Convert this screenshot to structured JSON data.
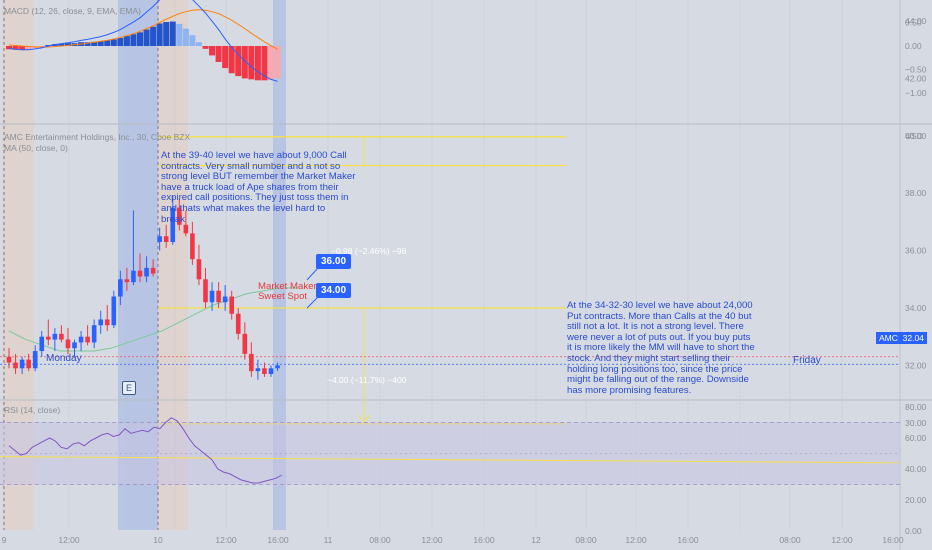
{
  "macd_panel": {
    "legend": "MACD (12, 26, close, 9, EMA, EMA)",
    "axis_ticks": [
      {
        "value": 0.5,
        "label": "0.50"
      },
      {
        "value": 0.0,
        "label": "0.00"
      },
      {
        "value": -0.5,
        "label": "−0.50"
      },
      {
        "value": -1.0,
        "label": "−1.00"
      }
    ]
  },
  "price_panel": {
    "legend_line1": "AMC Entertainment Holdings, Inc., 30, Cboe BZX",
    "legend_line2": "MA (50, close, 0)",
    "currency": "USD",
    "axis_ticks": [
      {
        "value": 44,
        "label": "44.00"
      },
      {
        "value": 42,
        "label": "42.00"
      },
      {
        "value": 40,
        "label": "40.00"
      },
      {
        "value": 38,
        "label": "38.00"
      },
      {
        "value": 36,
        "label": "36.00"
      },
      {
        "value": 34,
        "label": "34.00"
      },
      {
        "value": 32,
        "label": "32.00"
      },
      {
        "value": 30,
        "label": "30.00"
      }
    ],
    "current_price": {
      "symbol": "AMC",
      "value": "32.04"
    }
  },
  "rsi_panel": {
    "legend": "RSI (14, close)",
    "axis_ticks": [
      {
        "value": 80,
        "label": "80.00"
      },
      {
        "value": 60,
        "label": "60.00"
      },
      {
        "value": 40,
        "label": "40.00"
      },
      {
        "value": 20,
        "label": "20.00"
      },
      {
        "value": 0,
        "label": "0.00"
      }
    ]
  },
  "time_axis": [
    "9",
    "12:00",
    "10",
    "12:00",
    "16:00",
    "11",
    "08:00",
    "12:00",
    "16:00",
    "12",
    "08:00",
    "12:00",
    "16:00",
    "08:00",
    "12:00",
    "16:00"
  ],
  "day_labels": {
    "monday": "Monday",
    "friday": "Friday"
  },
  "annotations": {
    "calls_note": "At the 39-40 level we have about 9,000 Call\ncontracts. Very small number and a not so\nstrong level BUT remember the Market Maker\nhave a truck load of Ape shares from their\nexpired call positions. They just toss them in\nand thats what makes the level hard to\nbreak",
    "puts_note": "At the 34-32-30 level we have about 24,000\nPut  contracts. More than Calls at the 40 but\nstill not a lot. It is not a strong level. There\nwere never a lot of puts out. If you buy puts\nit is more likely the MM will have to short the\nstock. And they might start selling their\nholding long positions too, since the price\nmight be falling out of the range. Downside\nhas more promising features.",
    "sweet_spot": "Market Maker\nSweet Spot",
    "measure_up": "−0.98 (−2.46%) −98",
    "measure_down": "−4.00 (−11.7%) −400",
    "tag_36": "36.00",
    "tag_34": "34.00",
    "earnings_icon": "E"
  },
  "colors": {
    "background": "#d6dae3",
    "up_candle": "#2962ff",
    "down_candle": "#f23645",
    "ma_line": "#7ec89a",
    "level_line": "#f5e04a",
    "rsi_line": "#7e57c2",
    "annotation_text": "#2a4bd1"
  },
  "chart_data": {
    "type": "candlestick",
    "symbol": "AMC",
    "interval": "30",
    "ylim": [
      29,
      46
    ],
    "candles": [
      {
        "o": 32.3,
        "h": 32.6,
        "l": 31.9,
        "c": 32.1
      },
      {
        "o": 32.1,
        "h": 32.4,
        "l": 31.7,
        "c": 31.9
      },
      {
        "o": 31.9,
        "h": 32.3,
        "l": 31.7,
        "c": 32.2
      },
      {
        "o": 32.2,
        "h": 32.4,
        "l": 31.8,
        "c": 31.9
      },
      {
        "o": 31.9,
        "h": 32.7,
        "l": 31.8,
        "c": 32.5
      },
      {
        "o": 32.5,
        "h": 33.2,
        "l": 32.3,
        "c": 33.0
      },
      {
        "o": 33.0,
        "h": 33.6,
        "l": 32.7,
        "c": 32.9
      },
      {
        "o": 32.9,
        "h": 33.3,
        "l": 32.5,
        "c": 33.1
      },
      {
        "o": 33.1,
        "h": 33.4,
        "l": 32.8,
        "c": 32.9
      },
      {
        "o": 32.9,
        "h": 33.3,
        "l": 32.4,
        "c": 32.6
      },
      {
        "o": 32.6,
        "h": 32.9,
        "l": 32.3,
        "c": 32.8
      },
      {
        "o": 32.8,
        "h": 33.2,
        "l": 32.5,
        "c": 33.0
      },
      {
        "o": 33.0,
        "h": 33.4,
        "l": 32.7,
        "c": 32.8
      },
      {
        "o": 32.8,
        "h": 33.6,
        "l": 32.6,
        "c": 33.4
      },
      {
        "o": 33.4,
        "h": 33.9,
        "l": 33.1,
        "c": 33.6
      },
      {
        "o": 33.6,
        "h": 34.1,
        "l": 33.2,
        "c": 33.4
      },
      {
        "o": 33.4,
        "h": 34.6,
        "l": 33.3,
        "c": 34.4
      },
      {
        "o": 34.4,
        "h": 35.3,
        "l": 34.1,
        "c": 35.0
      },
      {
        "o": 35.0,
        "h": 35.4,
        "l": 34.6,
        "c": 34.9
      },
      {
        "o": 34.9,
        "h": 37.4,
        "l": 34.8,
        "c": 35.3
      },
      {
        "o": 35.3,
        "h": 35.9,
        "l": 34.9,
        "c": 35.1
      },
      {
        "o": 35.1,
        "h": 35.8,
        "l": 34.9,
        "c": 35.4
      },
      {
        "o": 35.4,
        "h": 35.7,
        "l": 35.1,
        "c": 35.2
      },
      {
        "o": 36.3,
        "h": 36.8,
        "l": 36.0,
        "c": 36.5
      },
      {
        "o": 36.5,
        "h": 36.9,
        "l": 36.1,
        "c": 36.3
      },
      {
        "o": 36.3,
        "h": 37.9,
        "l": 36.2,
        "c": 37.5
      },
      {
        "o": 37.5,
        "h": 37.8,
        "l": 36.7,
        "c": 36.9
      },
      {
        "o": 36.9,
        "h": 37.4,
        "l": 36.5,
        "c": 36.6
      },
      {
        "o": 36.6,
        "h": 37.0,
        "l": 35.5,
        "c": 35.7
      },
      {
        "o": 35.7,
        "h": 36.2,
        "l": 34.8,
        "c": 35.0
      },
      {
        "o": 35.0,
        "h": 35.4,
        "l": 34.0,
        "c": 34.2
      },
      {
        "o": 34.2,
        "h": 34.9,
        "l": 33.9,
        "c": 34.6
      },
      {
        "o": 34.6,
        "h": 34.9,
        "l": 34.0,
        "c": 34.2
      },
      {
        "o": 34.2,
        "h": 34.8,
        "l": 33.9,
        "c": 34.4
      },
      {
        "o": 34.4,
        "h": 34.6,
        "l": 33.6,
        "c": 33.8
      },
      {
        "o": 33.8,
        "h": 34.0,
        "l": 32.9,
        "c": 33.1
      },
      {
        "o": 33.1,
        "h": 33.5,
        "l": 32.2,
        "c": 32.4
      },
      {
        "o": 32.4,
        "h": 32.8,
        "l": 31.6,
        "c": 31.8
      },
      {
        "o": 31.8,
        "h": 32.2,
        "l": 31.5,
        "c": 31.9
      },
      {
        "o": 31.9,
        "h": 32.1,
        "l": 31.6,
        "c": 31.7
      },
      {
        "o": 31.7,
        "h": 32.0,
        "l": 31.6,
        "c": 31.9
      },
      {
        "o": 31.9,
        "h": 32.1,
        "l": 31.8,
        "c": 32.0
      }
    ],
    "ma50": [
      33.2,
      32.9,
      32.7,
      32.5,
      32.5,
      32.5,
      32.6,
      32.8,
      33.0,
      33.2,
      33.5,
      33.8,
      34.1,
      34.3,
      34.5,
      34.6,
      34.7,
      34.7
    ],
    "levels": [
      40.0,
      39.0,
      34.0,
      30.0
    ],
    "macd": [
      -0.05,
      -0.07,
      -0.08,
      -0.08,
      -0.06,
      -0.04,
      0.0,
      0.03,
      0.05,
      0.07,
      0.09,
      0.12,
      0.14,
      0.17,
      0.2,
      0.24,
      0.29,
      0.35,
      0.43,
      0.51,
      0.6,
      0.72,
      0.84,
      0.98,
      1.08,
      1.15,
      1.16,
      1.1,
      0.99,
      0.85,
      0.7,
      0.53,
      0.35,
      0.15,
      -0.03,
      -0.18,
      -0.32,
      -0.44,
      -0.55,
      -0.64,
      -0.71,
      -0.75
    ],
    "signal": [
      0.02,
      0.01,
      0.0,
      -0.01,
      -0.02,
      -0.02,
      -0.02,
      -0.01,
      0.0,
      0.01,
      0.03,
      0.04,
      0.06,
      0.08,
      0.1,
      0.12,
      0.15,
      0.18,
      0.22,
      0.26,
      0.31,
      0.37,
      0.43,
      0.5,
      0.57,
      0.63,
      0.69,
      0.73,
      0.76,
      0.77,
      0.76,
      0.73,
      0.69,
      0.62,
      0.55,
      0.46,
      0.37,
      0.27,
      0.18,
      0.09,
      0.01,
      -0.07
    ],
    "histogram": [
      -0.07,
      -0.08,
      -0.08,
      -0.07,
      -0.04,
      -0.02,
      0.02,
      0.04,
      0.05,
      0.06,
      0.06,
      0.08,
      0.08,
      0.09,
      0.1,
      0.12,
      0.14,
      0.17,
      0.21,
      0.25,
      0.29,
      0.35,
      0.41,
      0.48,
      0.51,
      0.52,
      0.47,
      0.37,
      0.23,
      0.08,
      -0.06,
      -0.2,
      -0.34,
      -0.47,
      -0.58,
      -0.64,
      -0.69,
      -0.71,
      -0.73,
      -0.73,
      -0.72,
      -0.68
    ],
    "rsi": [
      55,
      52,
      49,
      50,
      54,
      56,
      58,
      60,
      58,
      54,
      53,
      56,
      57,
      55,
      58,
      60,
      62,
      63,
      61,
      62,
      66,
      63,
      64,
      65,
      64,
      67,
      66,
      70,
      73,
      71,
      66,
      60,
      55,
      52,
      49,
      46,
      40,
      38,
      37,
      35,
      33,
      32,
      31,
      31,
      32,
      33,
      34,
      36
    ],
    "rsi_bands": [
      70,
      50,
      30
    ]
  }
}
